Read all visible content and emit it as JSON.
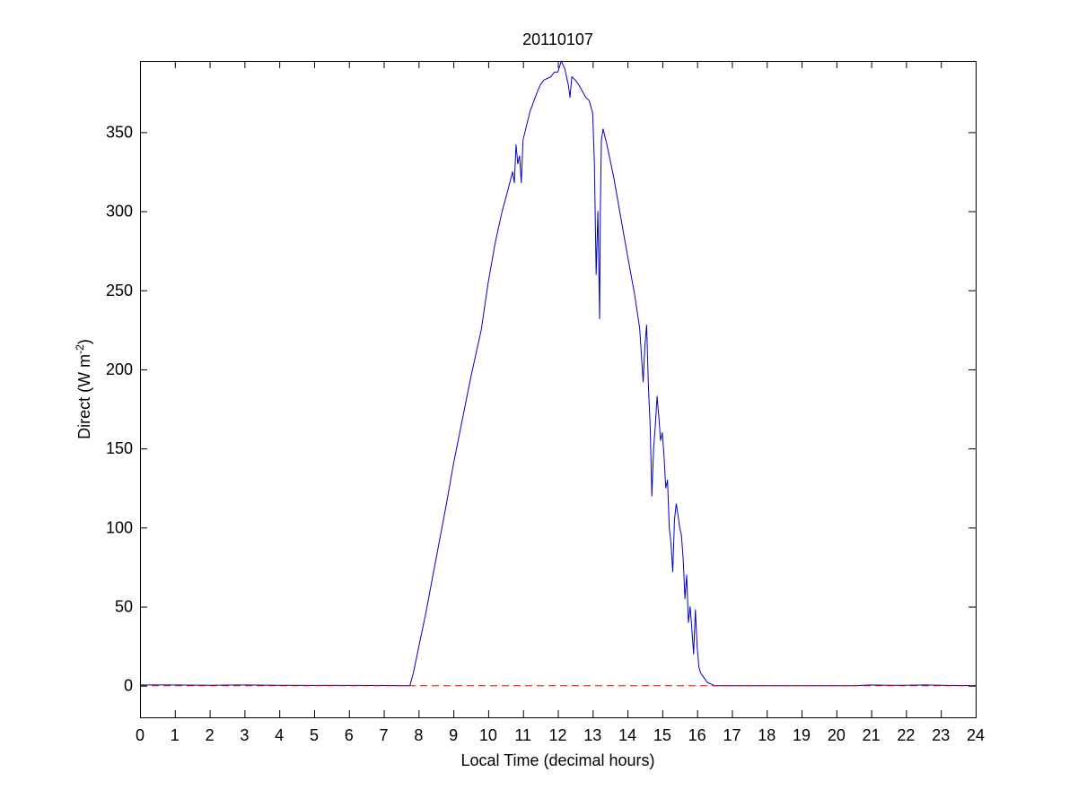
{
  "chart_data": {
    "type": "line",
    "title": "20110107",
    "xlabel": "Local Time (decimal hours)",
    "ylabel": {
      "prefix": "Direct (W m",
      "superscript": "-2",
      "suffix": ")"
    },
    "xlim": [
      0,
      24
    ],
    "ylim": [
      -20,
      395
    ],
    "xticks": [
      0,
      1,
      2,
      3,
      4,
      5,
      6,
      7,
      8,
      9,
      10,
      11,
      12,
      13,
      14,
      15,
      16,
      17,
      18,
      19,
      20,
      21,
      22,
      23,
      24
    ],
    "yticks": [
      0,
      50,
      100,
      150,
      200,
      250,
      300,
      350
    ],
    "grid": false,
    "legend": "none",
    "series": [
      {
        "color": "#0000cc",
        "style": "solid",
        "x": [
          0,
          1,
          2,
          3,
          4,
          5,
          6,
          7,
          7.75,
          7.85,
          8.0,
          8.2,
          8.5,
          8.8,
          9.0,
          9.2,
          9.5,
          9.8,
          10.0,
          10.2,
          10.4,
          10.55,
          10.7,
          10.75,
          10.8,
          10.85,
          10.9,
          10.95,
          11.0,
          11.2,
          11.4,
          11.5,
          11.6,
          11.8,
          11.9,
          12.0,
          12.1,
          12.2,
          12.3,
          12.35,
          12.4,
          12.5,
          12.6,
          12.7,
          12.8,
          12.9,
          13.0,
          13.05,
          13.1,
          13.15,
          13.2,
          13.22,
          13.25,
          13.3,
          13.4,
          13.6,
          13.8,
          14.0,
          14.2,
          14.35,
          14.45,
          14.5,
          14.55,
          14.6,
          14.65,
          14.7,
          14.75,
          14.8,
          14.85,
          14.9,
          14.95,
          15.0,
          15.05,
          15.1,
          15.15,
          15.2,
          15.25,
          15.3,
          15.35,
          15.4,
          15.45,
          15.5,
          15.55,
          15.6,
          15.65,
          15.7,
          15.75,
          15.8,
          15.85,
          15.9,
          15.95,
          16.0,
          16.05,
          16.1,
          16.2,
          16.3,
          16.4,
          16.5,
          16.6,
          17,
          18,
          19,
          20,
          20.5,
          21,
          21.5,
          22,
          22.5,
          23,
          24
        ],
        "y": [
          0.5,
          0.5,
          0.3,
          0.5,
          0.3,
          0.2,
          0.2,
          0.1,
          0,
          8,
          24,
          45,
          80,
          115,
          140,
          162,
          195,
          225,
          255,
          280,
          300,
          312,
          325,
          318,
          342,
          330,
          335,
          318,
          345,
          363,
          375,
          380,
          383,
          385,
          388,
          388,
          395,
          390,
          380,
          372,
          385,
          383,
          380,
          376,
          372,
          370,
          362,
          330,
          260,
          300,
          232,
          300,
          345,
          352,
          343,
          322,
          297,
          272,
          248,
          226,
          192,
          215,
          228,
          190,
          165,
          120,
          150,
          165,
          183,
          170,
          155,
          160,
          145,
          125,
          130,
          100,
          90,
          72,
          105,
          115,
          108,
          100,
          95,
          80,
          55,
          70,
          40,
          50,
          35,
          20,
          48,
          25,
          12,
          8,
          5,
          2,
          1,
          0,
          0,
          0,
          0,
          0,
          0,
          0,
          0.5,
          0.3,
          0.3,
          0.5,
          0.3,
          0
        ],
        "label": null
      },
      {
        "color": "#ff0000",
        "style": "dashed",
        "x": [
          0,
          24
        ],
        "y": [
          0,
          0
        ],
        "label": null
      }
    ]
  }
}
